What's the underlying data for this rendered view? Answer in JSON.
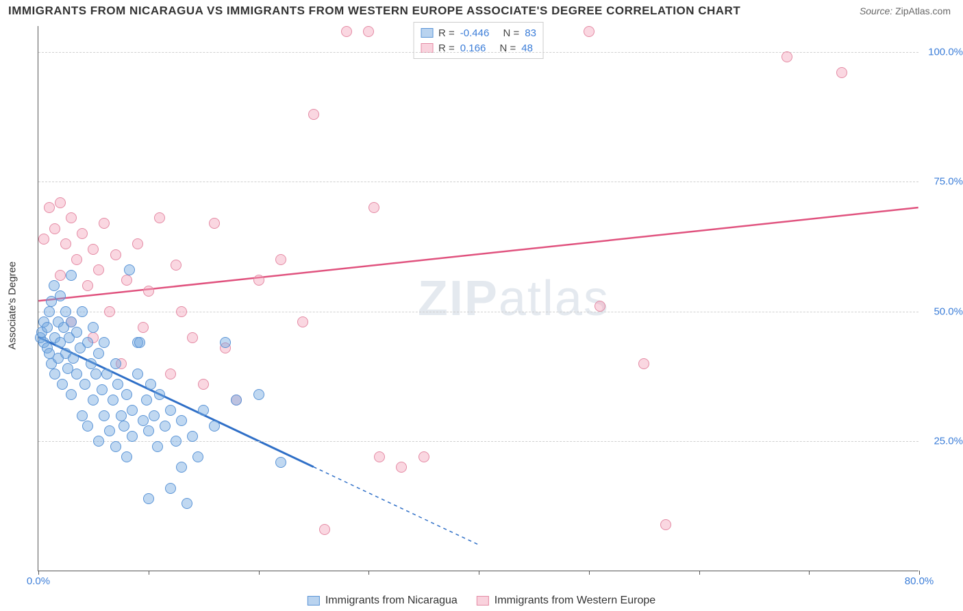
{
  "title": "IMMIGRANTS FROM NICARAGUA VS IMMIGRANTS FROM WESTERN EUROPE ASSOCIATE'S DEGREE CORRELATION CHART",
  "source_label": "Source:",
  "source_value": "ZipAtlas.com",
  "ylabel": "Associate's Degree",
  "watermark": {
    "bold": "ZIP",
    "rest": "atlas"
  },
  "chart": {
    "type": "scatter",
    "background_color": "#ffffff",
    "grid_color": "#cfcfcf",
    "axis_color": "#555555",
    "xlim": [
      0,
      80
    ],
    "ylim": [
      0,
      105
    ],
    "xticks": [
      {
        "v": 0,
        "label": "0.0%"
      },
      {
        "v": 10,
        "label": ""
      },
      {
        "v": 20,
        "label": ""
      },
      {
        "v": 30,
        "label": ""
      },
      {
        "v": 40,
        "label": ""
      },
      {
        "v": 50,
        "label": ""
      },
      {
        "v": 60,
        "label": ""
      },
      {
        "v": 70,
        "label": ""
      },
      {
        "v": 80,
        "label": "80.0%"
      }
    ],
    "yticks": [
      {
        "v": 25,
        "label": "25.0%"
      },
      {
        "v": 50,
        "label": "50.0%"
      },
      {
        "v": 75,
        "label": "75.0%"
      },
      {
        "v": 100,
        "label": "100.0%"
      }
    ],
    "legend_top": [
      {
        "swatch": "blue",
        "r_label": "R =",
        "r": "-0.446",
        "n_label": "N =",
        "n": "83"
      },
      {
        "swatch": "pink",
        "r_label": "R =",
        "r": "0.166",
        "n_label": "N =",
        "n": "48"
      }
    ],
    "legend_bottom": [
      {
        "swatch": "blue",
        "label": "Immigrants from Nicaragua"
      },
      {
        "swatch": "pink",
        "label": "Immigrants from Western Europe"
      }
    ],
    "series": {
      "blue": {
        "color_fill": "rgba(115,168,224,0.45)",
        "color_stroke": "#5a94d6",
        "marker_radius": 8,
        "trend": {
          "x1": 0,
          "y1": 45,
          "x2_solid": 25,
          "y2_solid": 20,
          "x2": 40,
          "y2": 5,
          "color": "#2f6fc7",
          "width": 3
        },
        "points": [
          [
            0.2,
            45
          ],
          [
            0.3,
            46
          ],
          [
            0.5,
            44
          ],
          [
            0.5,
            48
          ],
          [
            0.8,
            43
          ],
          [
            0.8,
            47
          ],
          [
            1.0,
            50
          ],
          [
            1.0,
            42
          ],
          [
            1.2,
            52
          ],
          [
            1.2,
            40
          ],
          [
            1.4,
            55
          ],
          [
            1.5,
            45
          ],
          [
            1.5,
            38
          ],
          [
            1.8,
            48
          ],
          [
            1.8,
            41
          ],
          [
            2.0,
            44
          ],
          [
            2.0,
            53
          ],
          [
            2.2,
            36
          ],
          [
            2.3,
            47
          ],
          [
            2.5,
            42
          ],
          [
            2.5,
            50
          ],
          [
            2.7,
            39
          ],
          [
            2.8,
            45
          ],
          [
            3.0,
            34
          ],
          [
            3.0,
            48
          ],
          [
            3.0,
            57
          ],
          [
            3.2,
            41
          ],
          [
            3.5,
            38
          ],
          [
            3.5,
            46
          ],
          [
            3.8,
            43
          ],
          [
            4.0,
            30
          ],
          [
            4.0,
            50
          ],
          [
            4.2,
            36
          ],
          [
            4.5,
            44
          ],
          [
            4.5,
            28
          ],
          [
            4.8,
            40
          ],
          [
            5.0,
            33
          ],
          [
            5.0,
            47
          ],
          [
            5.2,
            38
          ],
          [
            5.5,
            42
          ],
          [
            5.5,
            25
          ],
          [
            5.8,
            35
          ],
          [
            6.0,
            30
          ],
          [
            6.0,
            44
          ],
          [
            6.2,
            38
          ],
          [
            6.5,
            27
          ],
          [
            6.8,
            33
          ],
          [
            7.0,
            40
          ],
          [
            7.0,
            24
          ],
          [
            7.2,
            36
          ],
          [
            7.5,
            30
          ],
          [
            7.8,
            28
          ],
          [
            8.0,
            34
          ],
          [
            8.0,
            22
          ],
          [
            8.3,
            58
          ],
          [
            8.5,
            31
          ],
          [
            8.5,
            26
          ],
          [
            9.0,
            38
          ],
          [
            9.0,
            44
          ],
          [
            9.2,
            44
          ],
          [
            9.5,
            29
          ],
          [
            9.8,
            33
          ],
          [
            10.0,
            27
          ],
          [
            10.0,
            14
          ],
          [
            10.2,
            36
          ],
          [
            10.5,
            30
          ],
          [
            10.8,
            24
          ],
          [
            11.0,
            34
          ],
          [
            11.5,
            28
          ],
          [
            12.0,
            31
          ],
          [
            12.0,
            16
          ],
          [
            12.5,
            25
          ],
          [
            13.0,
            29
          ],
          [
            13.0,
            20
          ],
          [
            13.5,
            13
          ],
          [
            14.0,
            26
          ],
          [
            14.5,
            22
          ],
          [
            15.0,
            31
          ],
          [
            16.0,
            28
          ],
          [
            17.0,
            44
          ],
          [
            18.0,
            33
          ],
          [
            20.0,
            34
          ],
          [
            22.0,
            21
          ]
        ]
      },
      "pink": {
        "color_fill": "rgba(244,166,188,0.45)",
        "color_stroke": "#e48aa4",
        "marker_radius": 8,
        "trend": {
          "x1": 0,
          "y1": 52,
          "x2": 80,
          "y2": 70,
          "color": "#e0527e",
          "width": 2.5
        },
        "points": [
          [
            0.5,
            64
          ],
          [
            1.0,
            70
          ],
          [
            1.5,
            66
          ],
          [
            2.0,
            71
          ],
          [
            2.0,
            57
          ],
          [
            2.5,
            63
          ],
          [
            3.0,
            68
          ],
          [
            3.0,
            48
          ],
          [
            3.5,
            60
          ],
          [
            4.0,
            65
          ],
          [
            4.5,
            55
          ],
          [
            5.0,
            62
          ],
          [
            5.0,
            45
          ],
          [
            5.5,
            58
          ],
          [
            6.0,
            67
          ],
          [
            6.5,
            50
          ],
          [
            7.0,
            61
          ],
          [
            7.5,
            40
          ],
          [
            8.0,
            56
          ],
          [
            9.0,
            63
          ],
          [
            9.5,
            47
          ],
          [
            10.0,
            54
          ],
          [
            11.0,
            68
          ],
          [
            12.0,
            38
          ],
          [
            12.5,
            59
          ],
          [
            13.0,
            50
          ],
          [
            14.0,
            45
          ],
          [
            15.0,
            36
          ],
          [
            16.0,
            67
          ],
          [
            17.0,
            43
          ],
          [
            18.0,
            33
          ],
          [
            20.0,
            56
          ],
          [
            22.0,
            60
          ],
          [
            24.0,
            48
          ],
          [
            25.0,
            88
          ],
          [
            26.0,
            8
          ],
          [
            28.0,
            104
          ],
          [
            30.0,
            104
          ],
          [
            30.5,
            70
          ],
          [
            31.0,
            22
          ],
          [
            33.0,
            20
          ],
          [
            35.0,
            22
          ],
          [
            50.0,
            104
          ],
          [
            51.0,
            51
          ],
          [
            55.0,
            40
          ],
          [
            57.0,
            9
          ],
          [
            68.0,
            99
          ],
          [
            73.0,
            96
          ]
        ]
      }
    }
  }
}
